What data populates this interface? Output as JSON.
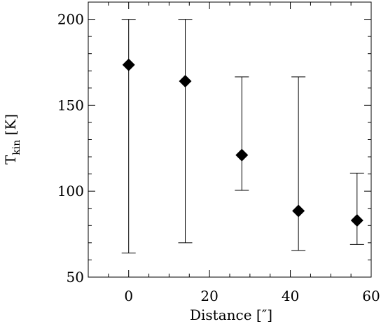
{
  "chart_data": {
    "type": "scatter",
    "title": "",
    "xlabel": "Distance [″]",
    "ylabel": "T",
    "ylabel_subscript": "kin",
    "ylabel_unit": " [K]",
    "xlim": [
      -10,
      60
    ],
    "ylim": [
      50,
      210
    ],
    "x_ticks": [
      0,
      20,
      40,
      60
    ],
    "y_ticks": [
      50,
      100,
      150,
      200
    ],
    "x_tick_labels": [
      "0",
      "20",
      "40",
      "60"
    ],
    "y_tick_labels": [
      "50",
      "100",
      "150",
      "200"
    ],
    "marker": "diamond",
    "grid": false,
    "points": [
      {
        "x": 0,
        "y": 173.5,
        "ylow": 64,
        "yhigh": 200
      },
      {
        "x": 14,
        "y": 164,
        "ylow": 70,
        "yhigh": 200
      },
      {
        "x": 28,
        "y": 121,
        "ylow": 100.5,
        "yhigh": 166.5
      },
      {
        "x": 42,
        "y": 88.5,
        "ylow": 65.5,
        "yhigh": 166.5
      },
      {
        "x": 56.5,
        "y": 83,
        "ylow": 69,
        "yhigh": 110.5
      }
    ]
  }
}
